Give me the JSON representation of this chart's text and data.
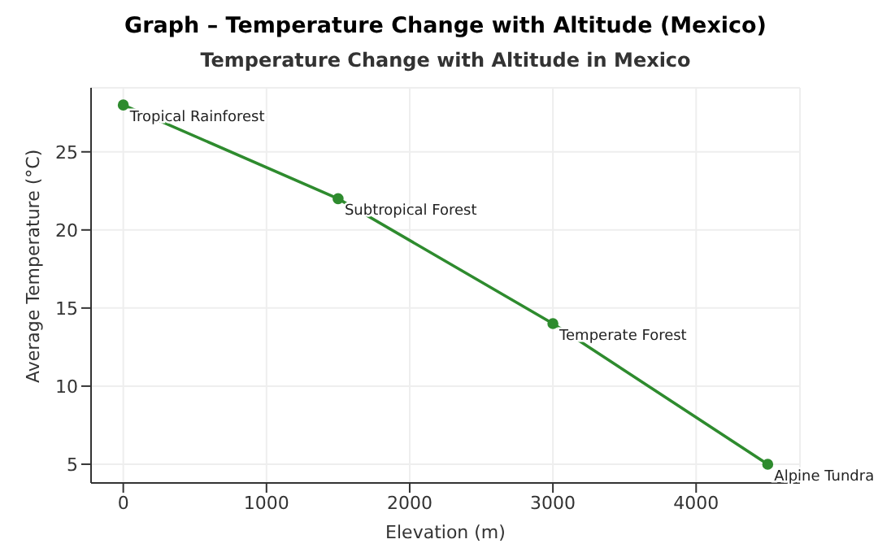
{
  "chart_data": {
    "type": "line",
    "title": "Graph – Temperature Change with Altitude (Mexico)",
    "subtitle": "Temperature Change with Altitude in Mexico",
    "xlabel": "Elevation (m)",
    "ylabel": "Average Temperature (°C)",
    "x": [
      0,
      1500,
      3000,
      4500
    ],
    "series": [
      {
        "color": "#2e8b2e",
        "values": [
          28,
          22,
          14,
          5
        ]
      }
    ],
    "annotations": [
      {
        "text": "Tropical Rainforest",
        "x": 0,
        "y": 28
      },
      {
        "text": "Subtropical Forest",
        "x": 1500,
        "y": 22
      },
      {
        "text": "Temperate Forest",
        "x": 3000,
        "y": 14
      },
      {
        "text": "Alpine Tundra",
        "x": 4500,
        "y": 5
      }
    ],
    "xlim": [
      -225,
      4725
    ],
    "xticks": [
      0,
      1000,
      2000,
      3000,
      4000
    ],
    "ylim": [
      3.8,
      29.1
    ],
    "yticks": [
      5,
      10,
      15,
      20,
      25
    ],
    "grid": true,
    "marker": "circle",
    "line_style": "solid",
    "legend": false
  }
}
